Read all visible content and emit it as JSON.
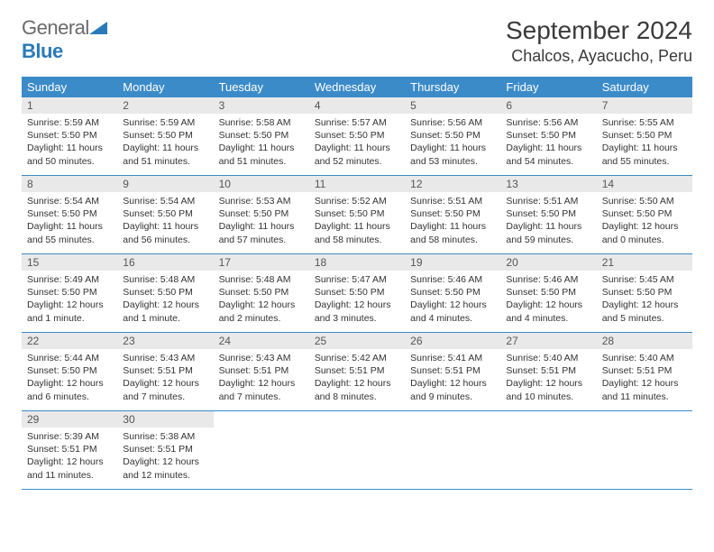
{
  "logo": {
    "general": "General",
    "blue": "Blue"
  },
  "title": "September 2024",
  "location": "Chalcos, Ayacucho, Peru",
  "colors": {
    "header_bg": "#3b8bc9",
    "header_fg": "#ffffff",
    "daynum_bg": "#e9e9e9",
    "daynum_fg": "#555555",
    "text": "#333333",
    "rule": "#3b8bc9",
    "logo_gray": "#6a6a6a",
    "logo_blue": "#2a7aba"
  },
  "dow": [
    "Sunday",
    "Monday",
    "Tuesday",
    "Wednesday",
    "Thursday",
    "Friday",
    "Saturday"
  ],
  "weeks": [
    [
      {
        "n": "1",
        "sunrise": "Sunrise: 5:59 AM",
        "sunset": "Sunset: 5:50 PM",
        "daylight": "Daylight: 11 hours and 50 minutes."
      },
      {
        "n": "2",
        "sunrise": "Sunrise: 5:59 AM",
        "sunset": "Sunset: 5:50 PM",
        "daylight": "Daylight: 11 hours and 51 minutes."
      },
      {
        "n": "3",
        "sunrise": "Sunrise: 5:58 AM",
        "sunset": "Sunset: 5:50 PM",
        "daylight": "Daylight: 11 hours and 51 minutes."
      },
      {
        "n": "4",
        "sunrise": "Sunrise: 5:57 AM",
        "sunset": "Sunset: 5:50 PM",
        "daylight": "Daylight: 11 hours and 52 minutes."
      },
      {
        "n": "5",
        "sunrise": "Sunrise: 5:56 AM",
        "sunset": "Sunset: 5:50 PM",
        "daylight": "Daylight: 11 hours and 53 minutes."
      },
      {
        "n": "6",
        "sunrise": "Sunrise: 5:56 AM",
        "sunset": "Sunset: 5:50 PM",
        "daylight": "Daylight: 11 hours and 54 minutes."
      },
      {
        "n": "7",
        "sunrise": "Sunrise: 5:55 AM",
        "sunset": "Sunset: 5:50 PM",
        "daylight": "Daylight: 11 hours and 55 minutes."
      }
    ],
    [
      {
        "n": "8",
        "sunrise": "Sunrise: 5:54 AM",
        "sunset": "Sunset: 5:50 PM",
        "daylight": "Daylight: 11 hours and 55 minutes."
      },
      {
        "n": "9",
        "sunrise": "Sunrise: 5:54 AM",
        "sunset": "Sunset: 5:50 PM",
        "daylight": "Daylight: 11 hours and 56 minutes."
      },
      {
        "n": "10",
        "sunrise": "Sunrise: 5:53 AM",
        "sunset": "Sunset: 5:50 PM",
        "daylight": "Daylight: 11 hours and 57 minutes."
      },
      {
        "n": "11",
        "sunrise": "Sunrise: 5:52 AM",
        "sunset": "Sunset: 5:50 PM",
        "daylight": "Daylight: 11 hours and 58 minutes."
      },
      {
        "n": "12",
        "sunrise": "Sunrise: 5:51 AM",
        "sunset": "Sunset: 5:50 PM",
        "daylight": "Daylight: 11 hours and 58 minutes."
      },
      {
        "n": "13",
        "sunrise": "Sunrise: 5:51 AM",
        "sunset": "Sunset: 5:50 PM",
        "daylight": "Daylight: 11 hours and 59 minutes."
      },
      {
        "n": "14",
        "sunrise": "Sunrise: 5:50 AM",
        "sunset": "Sunset: 5:50 PM",
        "daylight": "Daylight: 12 hours and 0 minutes."
      }
    ],
    [
      {
        "n": "15",
        "sunrise": "Sunrise: 5:49 AM",
        "sunset": "Sunset: 5:50 PM",
        "daylight": "Daylight: 12 hours and 1 minute."
      },
      {
        "n": "16",
        "sunrise": "Sunrise: 5:48 AM",
        "sunset": "Sunset: 5:50 PM",
        "daylight": "Daylight: 12 hours and 1 minute."
      },
      {
        "n": "17",
        "sunrise": "Sunrise: 5:48 AM",
        "sunset": "Sunset: 5:50 PM",
        "daylight": "Daylight: 12 hours and 2 minutes."
      },
      {
        "n": "18",
        "sunrise": "Sunrise: 5:47 AM",
        "sunset": "Sunset: 5:50 PM",
        "daylight": "Daylight: 12 hours and 3 minutes."
      },
      {
        "n": "19",
        "sunrise": "Sunrise: 5:46 AM",
        "sunset": "Sunset: 5:50 PM",
        "daylight": "Daylight: 12 hours and 4 minutes."
      },
      {
        "n": "20",
        "sunrise": "Sunrise: 5:46 AM",
        "sunset": "Sunset: 5:50 PM",
        "daylight": "Daylight: 12 hours and 4 minutes."
      },
      {
        "n": "21",
        "sunrise": "Sunrise: 5:45 AM",
        "sunset": "Sunset: 5:50 PM",
        "daylight": "Daylight: 12 hours and 5 minutes."
      }
    ],
    [
      {
        "n": "22",
        "sunrise": "Sunrise: 5:44 AM",
        "sunset": "Sunset: 5:50 PM",
        "daylight": "Daylight: 12 hours and 6 minutes."
      },
      {
        "n": "23",
        "sunrise": "Sunrise: 5:43 AM",
        "sunset": "Sunset: 5:51 PM",
        "daylight": "Daylight: 12 hours and 7 minutes."
      },
      {
        "n": "24",
        "sunrise": "Sunrise: 5:43 AM",
        "sunset": "Sunset: 5:51 PM",
        "daylight": "Daylight: 12 hours and 7 minutes."
      },
      {
        "n": "25",
        "sunrise": "Sunrise: 5:42 AM",
        "sunset": "Sunset: 5:51 PM",
        "daylight": "Daylight: 12 hours and 8 minutes."
      },
      {
        "n": "26",
        "sunrise": "Sunrise: 5:41 AM",
        "sunset": "Sunset: 5:51 PM",
        "daylight": "Daylight: 12 hours and 9 minutes."
      },
      {
        "n": "27",
        "sunrise": "Sunrise: 5:40 AM",
        "sunset": "Sunset: 5:51 PM",
        "daylight": "Daylight: 12 hours and 10 minutes."
      },
      {
        "n": "28",
        "sunrise": "Sunrise: 5:40 AM",
        "sunset": "Sunset: 5:51 PM",
        "daylight": "Daylight: 12 hours and 11 minutes."
      }
    ],
    [
      {
        "n": "29",
        "sunrise": "Sunrise: 5:39 AM",
        "sunset": "Sunset: 5:51 PM",
        "daylight": "Daylight: 12 hours and 11 minutes."
      },
      {
        "n": "30",
        "sunrise": "Sunrise: 5:38 AM",
        "sunset": "Sunset: 5:51 PM",
        "daylight": "Daylight: 12 hours and 12 minutes."
      },
      null,
      null,
      null,
      null,
      null
    ]
  ]
}
